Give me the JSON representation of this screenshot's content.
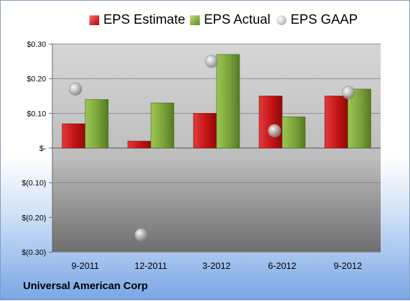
{
  "company_label": "Universal American Corp",
  "chart_data": {
    "type": "bar",
    "categories": [
      "9-2011",
      "12-2011",
      "3-2012",
      "6-2012",
      "9-2012"
    ],
    "series": [
      {
        "name": "EPS Estimate",
        "type": "bar",
        "color": "#cc1f1f",
        "values": [
          0.07,
          0.02,
          0.1,
          0.15,
          0.15
        ]
      },
      {
        "name": "EPS Actual",
        "type": "bar",
        "color": "#79a33a",
        "values": [
          0.14,
          0.13,
          0.27,
          0.09,
          0.17
        ]
      },
      {
        "name": "EPS GAAP",
        "type": "scatter",
        "color": "#b8b8b8",
        "values": [
          0.17,
          -0.25,
          0.25,
          0.05,
          0.16
        ]
      }
    ],
    "y_ticks": [
      {
        "value": 0.3,
        "label": "$0.30"
      },
      {
        "value": 0.2,
        "label": "$0.20"
      },
      {
        "value": 0.1,
        "label": "$0.10"
      },
      {
        "value": 0.0,
        "label": "$-"
      },
      {
        "value": -0.1,
        "label": "$(0.10)"
      },
      {
        "value": -0.2,
        "label": "$(0.20)"
      },
      {
        "value": -0.3,
        "label": "$(0.30)"
      }
    ],
    "ylim": [
      -0.3,
      0.3
    ],
    "grid": true,
    "legend_position": "top"
  }
}
